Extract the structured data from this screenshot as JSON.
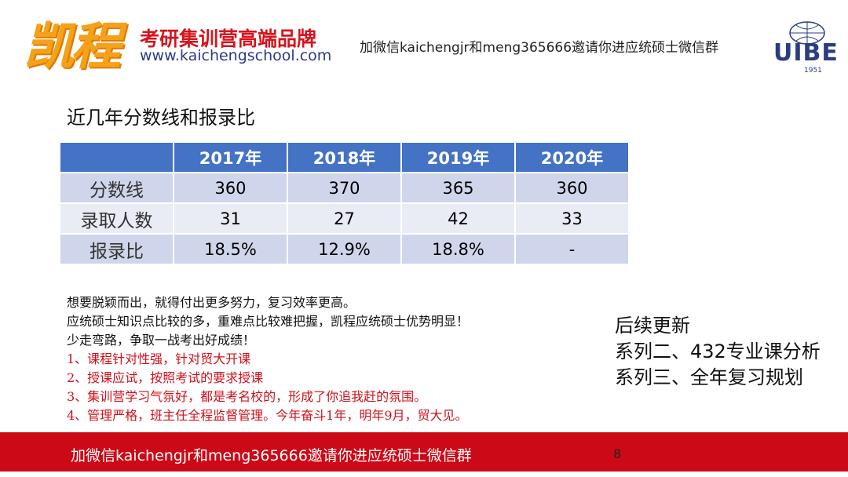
{
  "header": {
    "logo": "凯程",
    "slogan": "考研集训营高端品牌",
    "website": "www.kaichengschool.com",
    "notice": "加微信kaichengjr和meng365666邀请你进应统硕士微信群",
    "university_logo": "UIBE",
    "university_year": "1951"
  },
  "title": "近几年分数线和报录比",
  "table": {
    "columns": [
      "2017年",
      "2018年",
      "2019年",
      "2020年"
    ],
    "rows": [
      {
        "label": "分数线",
        "values": [
          360,
          370,
          365,
          360
        ]
      },
      {
        "label": "录取人数",
        "values": [
          31,
          27,
          42,
          33
        ]
      },
      {
        "label": "报录比",
        "values": [
          "18.5%",
          "12.9%",
          "18.8%",
          "-"
        ]
      }
    ]
  },
  "intro": [
    "想要脱颖而出，就得付出更多努力，复习效率更高。",
    "应统硕士知识点比较的多，重难点比较难把握，凯程应统硕士优势明显！",
    "少走弯路，争取一战考出好成绩！"
  ],
  "points": [
    "1、课程针对性强，针对贸大开课",
    "2、授课应试，按照考试的要求授课",
    "3、集训营学习气氛好，都是考名校的，形成了你追我赶的氛围。",
    "4、管理严格，班主任全程监督管理。今年奋斗1年，明年9月，贸大见。"
  ],
  "updates": [
    "后续更新",
    "系列二、432专业课分析",
    "系列三、全年复习规划"
  ],
  "footer": {
    "notice": "加微信kaichengjr和meng365666邀请你进应统硕士微信群",
    "page": 8
  }
}
